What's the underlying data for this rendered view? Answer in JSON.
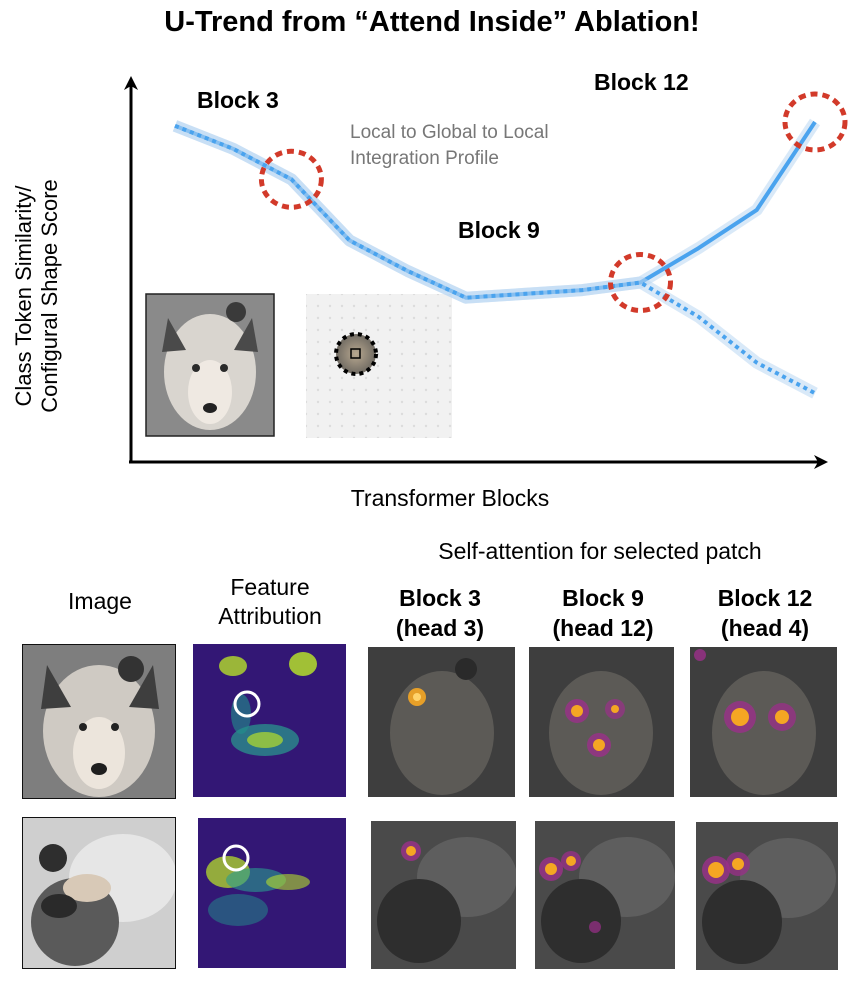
{
  "title": "U-Trend from “Attend Inside” Ablation!",
  "chart_data": {
    "type": "line",
    "title": "U-Trend from “Attend Inside” Ablation!",
    "xlabel": "Transformer Blocks",
    "ylabel": "Class Token Similarity/ Configural Shape Score",
    "x": [
      1,
      2,
      3,
      4,
      5,
      6,
      7,
      8,
      9,
      10,
      11,
      12
    ],
    "series": [
      {
        "name": "",
        "style": "solid",
        "color": "#4aa3ee",
        "values": [
          0.88,
          0.82,
          0.74,
          0.58,
          0.5,
          0.43,
          0.44,
          0.45,
          0.47,
          0.56,
          0.66,
          0.89
        ]
      },
      {
        "name": "",
        "style": "dotted",
        "color": "#4aa3ee",
        "values": [
          0.88,
          0.82,
          0.74,
          0.58,
          0.5,
          0.43,
          0.44,
          0.45,
          0.47,
          0.38,
          0.26,
          0.18
        ]
      }
    ],
    "highlighted_blocks": [
      3,
      9,
      12
    ],
    "annotations": [
      {
        "text": "Block 3"
      },
      {
        "text": "Block 9"
      },
      {
        "text": "Block 12"
      },
      {
        "text": "Local to Global to Local"
      },
      {
        "text": "Integration Profile"
      }
    ],
    "grid": false,
    "legend": "none"
  },
  "grid": {
    "section_title": "Self-attention for selected patch",
    "col_image": "Image",
    "col_attr_1": "Feature",
    "col_attr_2": "Attribution",
    "col_b3_1": "Block 3",
    "col_b3_2": "(head 3)",
    "col_b9_1": "Block 9",
    "col_b9_2": "(head 12)",
    "col_b12_1": "Block 12",
    "col_b12_2": "(head 4)"
  },
  "colors": {
    "line": "#4aa3ee",
    "highlight_circle": "#d23a2a",
    "attribution_bg": "#3b0f70",
    "attention_hot": "#f5a623"
  }
}
